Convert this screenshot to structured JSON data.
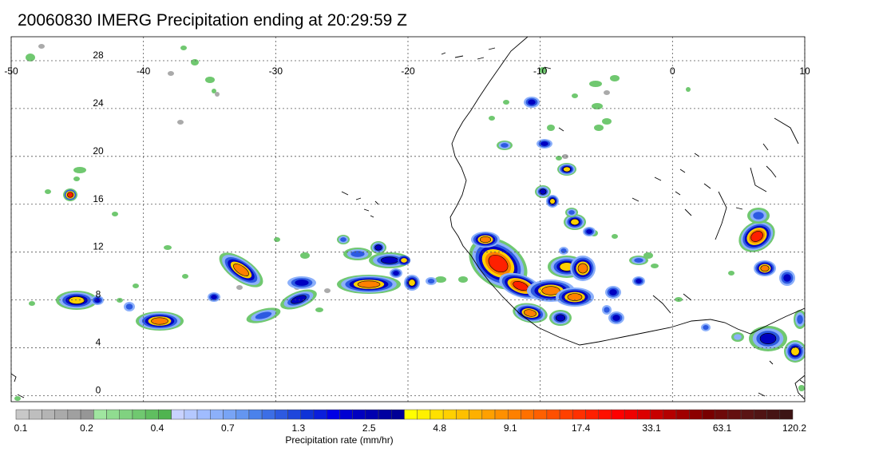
{
  "title": "20060830 IMERG Precipitation ending at 20:29:59 Z",
  "map": {
    "lon_labels": [
      "-50",
      "-40",
      "-30",
      "-20",
      "-10",
      "0",
      "10"
    ],
    "lon_values": [
      -50,
      -40,
      -30,
      -20,
      -10,
      0,
      10
    ],
    "lat_labels": [
      "28",
      "24",
      "20",
      "16",
      "12",
      "8",
      "4",
      "0"
    ],
    "lat_values": [
      28,
      24,
      20,
      16,
      12,
      8,
      4,
      0
    ],
    "lon_range": [
      -50,
      10
    ],
    "lat_range": [
      -0.5,
      30
    ],
    "grid": true
  },
  "colorbar": {
    "title": "Precipitation rate (mm/hr)",
    "tick_labels": [
      "0.1",
      "0.2",
      "0.4",
      "0.7",
      "1.3",
      "2.5",
      "4.8",
      "9.1",
      "17.4",
      "33.1",
      "63.1",
      "120.2"
    ],
    "colors": [
      "#c8c8c8",
      "#bebebe",
      "#b4b4b4",
      "#aaaaaa",
      "#a0a0a0",
      "#969696",
      "#a0e6a0",
      "#90dc90",
      "#80d280",
      "#70c870",
      "#60be60",
      "#50b450",
      "#c8d2ff",
      "#b4c8ff",
      "#a0bcff",
      "#8cb0fa",
      "#78a4f5",
      "#6496f0",
      "#4b82eb",
      "#3c6ee6",
      "#2d5ae1",
      "#1e46dc",
      "#0f32d7",
      "#0a1edc",
      "#0000e6",
      "#0000d2",
      "#0000c0",
      "#0000b0",
      "#0000a0",
      "#000096",
      "#ffff00",
      "#fff000",
      "#ffe000",
      "#ffd000",
      "#ffc000",
      "#ffb000",
      "#ffa000",
      "#ff9000",
      "#ff8000",
      "#ff7000",
      "#ff6000",
      "#ff5000",
      "#ff4000",
      "#ff3000",
      "#ff2000",
      "#ff1000",
      "#ff0000",
      "#f00000",
      "#dc0000",
      "#c80000",
      "#b40000",
      "#a00000",
      "#8c0000",
      "#780000",
      "#6e0a0a",
      "#641010",
      "#5a1414",
      "#501414",
      "#461414",
      "#3c1414"
    ]
  }
}
